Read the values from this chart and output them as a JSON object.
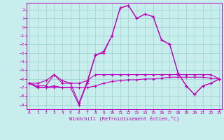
{
  "bg_color": "#c8eded",
  "grid_color": "#a8d8d8",
  "line_color": "#bb00bb",
  "xlim_min": 0,
  "xlim_max": 23,
  "ylim_min": -9.5,
  "ylim_max": 2.8,
  "yticks": [
    2,
    1,
    0,
    -1,
    -2,
    -3,
    -4,
    -5,
    -6,
    -7,
    -8,
    -9
  ],
  "xticks": [
    0,
    1,
    2,
    3,
    4,
    5,
    6,
    7,
    8,
    9,
    10,
    11,
    12,
    13,
    14,
    15,
    16,
    17,
    18,
    19,
    20,
    21,
    22,
    23
  ],
  "xlabel": "Windchill (Refroidissement éolien,°C)",
  "curve_a_x": [
    0,
    1,
    2,
    3,
    4,
    5,
    6,
    7,
    8,
    9,
    10,
    11,
    12,
    13,
    14,
    15,
    16,
    17,
    18,
    19,
    20,
    21,
    22,
    23
  ],
  "curve_a_y": [
    -6.5,
    -6.8,
    -6.8,
    -5.5,
    -6.5,
    -6.5,
    -8.8,
    -6.3,
    -3.2,
    -3.0,
    -1.0,
    2.2,
    2.5,
    1.0,
    1.5,
    1.2,
    -1.5,
    -2.0,
    -5.3,
    -6.8,
    -7.8,
    -6.8,
    -6.5,
    -6.0
  ],
  "curve_b_x": [
    0,
    1,
    2,
    3,
    4,
    5,
    6,
    7,
    8,
    9,
    10,
    11,
    12,
    13,
    14,
    15,
    16,
    17,
    18,
    19,
    20,
    21,
    22,
    23
  ],
  "curve_b_y": [
    -6.5,
    -7.0,
    -7.0,
    -7.0,
    -7.0,
    -7.0,
    -9.0,
    -6.5,
    -3.3,
    -2.8,
    -1.0,
    2.2,
    2.5,
    1.0,
    1.5,
    1.2,
    -1.5,
    -2.0,
    -5.3,
    -6.8,
    -7.8,
    -6.8,
    -6.5,
    -6.0
  ],
  "curve_c_x": [
    0,
    1,
    2,
    3,
    4,
    5,
    6,
    7,
    8,
    9,
    10,
    11,
    12,
    13,
    14,
    15,
    16,
    17,
    18,
    19,
    20,
    21,
    22,
    23
  ],
  "curve_c_y": [
    -6.5,
    -6.5,
    -6.2,
    -5.5,
    -6.2,
    -6.5,
    -6.5,
    -6.2,
    -5.5,
    -5.5,
    -5.5,
    -5.5,
    -5.5,
    -5.5,
    -5.5,
    -5.5,
    -5.5,
    -5.5,
    -5.5,
    -5.5,
    -5.5,
    -5.5,
    -5.5,
    -6.0
  ],
  "curve_d_x": [
    0,
    1,
    2,
    3,
    4,
    5,
    6,
    7,
    8,
    9,
    10,
    11,
    12,
    13,
    14,
    15,
    16,
    17,
    18,
    19,
    20,
    21,
    22,
    23
  ],
  "curve_d_y": [
    -6.5,
    -7.0,
    -7.0,
    -6.8,
    -7.0,
    -7.0,
    -7.0,
    -7.0,
    -6.8,
    -6.5,
    -6.3,
    -6.2,
    -6.1,
    -6.1,
    -6.0,
    -6.0,
    -5.9,
    -5.8,
    -5.8,
    -5.8,
    -5.8,
    -5.8,
    -5.9,
    -6.0
  ]
}
